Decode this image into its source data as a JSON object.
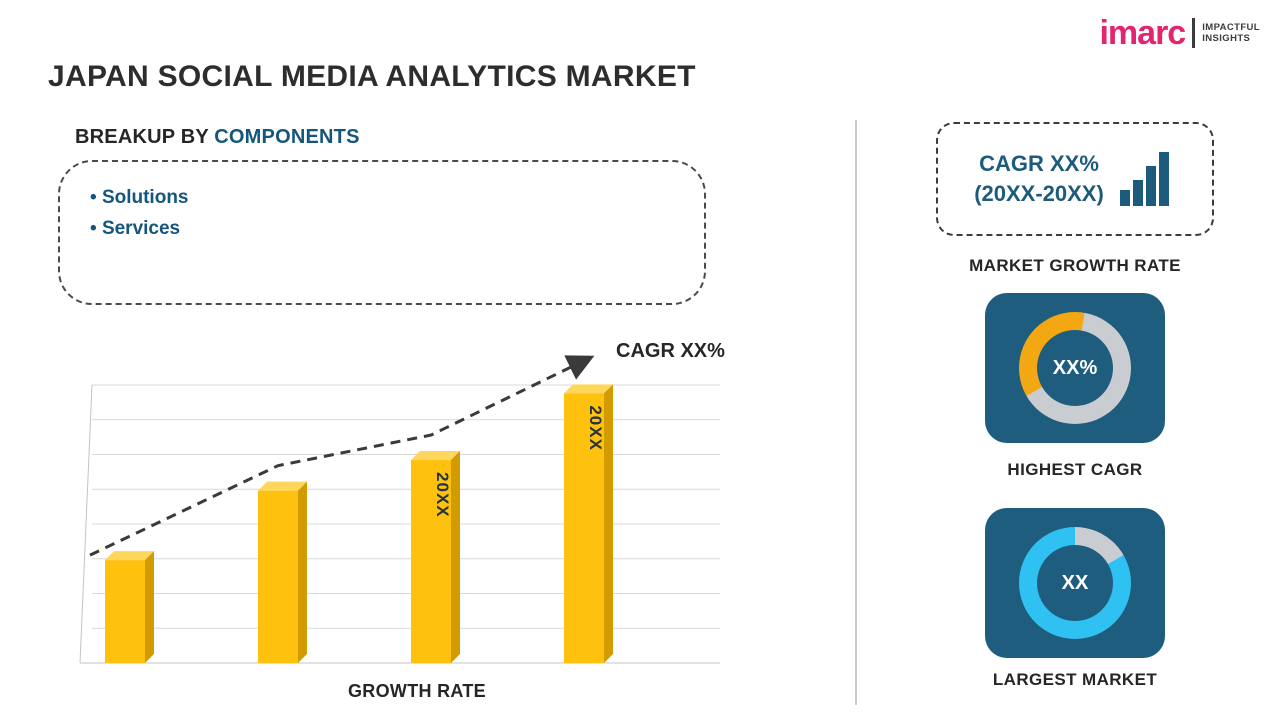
{
  "page": {
    "title": "JAPAN SOCIAL MEDIA ANALYTICS MARKET"
  },
  "logo": {
    "brand": "imarc",
    "tagline_line1": "IMPACTFUL",
    "tagline_line2": "INSIGHTS",
    "brand_color": "#e4246e"
  },
  "breakup": {
    "heading_prefix": "BREAKUP BY ",
    "heading_highlight": "COMPONENTS",
    "items": [
      "Solutions",
      "Services"
    ]
  },
  "chart_data": {
    "type": "bar",
    "title": "GROWTH RATE",
    "xlabel": "GROWTH RATE",
    "ylabel": "",
    "ylim": [
      0,
      100
    ],
    "gridlines": true,
    "categories": [
      "",
      "",
      "20XX",
      "20XX"
    ],
    "bar_labels": [
      "",
      "",
      "20XX",
      "20XX"
    ],
    "values": [
      37,
      62,
      73,
      97
    ],
    "trend_label": "CAGR XX%",
    "bar_color": "#fec10d",
    "bar_top_color": "#ffd65c",
    "bar_side_color": "#d29b00",
    "bar_label_color": "#253342",
    "trend_color": "#3a3a3a"
  },
  "sidebar": {
    "growth_box": {
      "line1": "CAGR XX%",
      "line2": "(20XX-20XX)",
      "caption": "MARKET GROWTH RATE"
    },
    "highest_cagr": {
      "value": "XX%",
      "caption": "HIGHEST CAGR",
      "ring_color": "#c9cdd2",
      "segment_color": "#f3a712",
      "segment_start": 240,
      "segment_deg": 130
    },
    "largest_market": {
      "value": "XX",
      "caption": "LARGEST MARKET",
      "ring_color": "#2fc1f1",
      "segment_color": "#c9cdd2",
      "segment_start": 0,
      "segment_deg": 60
    }
  }
}
